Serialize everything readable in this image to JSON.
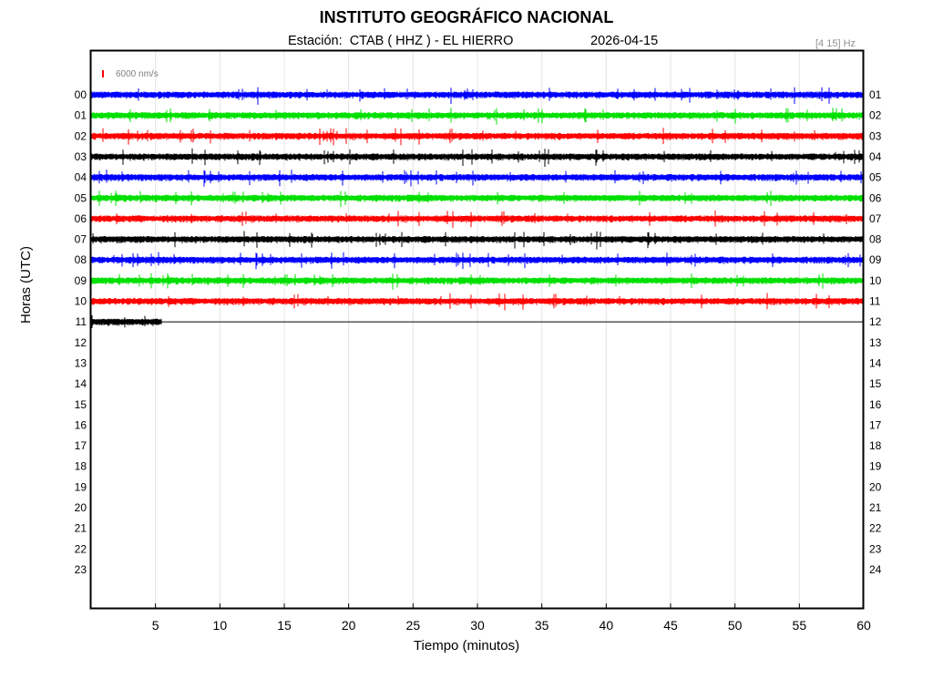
{
  "header": {
    "title": "INSTITUTO GEOGRÁFICO NACIONAL",
    "station": "Estación:  CTAB ( HHZ ) - EL HIERRO",
    "date": "2026-04-15",
    "band": "[4 15] Hz"
  },
  "chart_data": {
    "type": "line",
    "xlabel": "Tiempo (minutos)",
    "ylabel": "Horas (UTC)",
    "xlim": [
      0,
      60
    ],
    "x_ticks": [
      "5",
      "10",
      "15",
      "20",
      "25",
      "30",
      "35",
      "40",
      "45",
      "50",
      "55",
      "60"
    ],
    "grid": true,
    "scale_label": "6000 nm/s",
    "hours_left": [
      "00",
      "01",
      "02",
      "03",
      "04",
      "05",
      "06",
      "07",
      "08",
      "09",
      "10",
      "11",
      "12",
      "13",
      "14",
      "15",
      "16",
      "17",
      "18",
      "19",
      "20",
      "21",
      "22",
      "23"
    ],
    "hours_right": [
      "01",
      "02",
      "03",
      "04",
      "05",
      "06",
      "07",
      "08",
      "09",
      "10",
      "11",
      "12",
      "13",
      "14",
      "15",
      "16",
      "17",
      "18",
      "19",
      "20",
      "21",
      "22",
      "23",
      "24"
    ],
    "trace_colors": [
      "#0000ff",
      "#00e000",
      "#ff0000",
      "#000000"
    ],
    "traces": [
      {
        "hour": "00",
        "minutes_recorded": 60
      },
      {
        "hour": "01",
        "minutes_recorded": 60
      },
      {
        "hour": "02",
        "minutes_recorded": 60
      },
      {
        "hour": "03",
        "minutes_recorded": 60
      },
      {
        "hour": "04",
        "minutes_recorded": 60
      },
      {
        "hour": "05",
        "minutes_recorded": 60
      },
      {
        "hour": "06",
        "minutes_recorded": 60
      },
      {
        "hour": "07",
        "minutes_recorded": 60
      },
      {
        "hour": "08",
        "minutes_recorded": 60
      },
      {
        "hour": "09",
        "minutes_recorded": 60
      },
      {
        "hour": "10",
        "minutes_recorded": 60
      },
      {
        "hour": "11",
        "minutes_recorded": 5.5
      }
    ]
  }
}
